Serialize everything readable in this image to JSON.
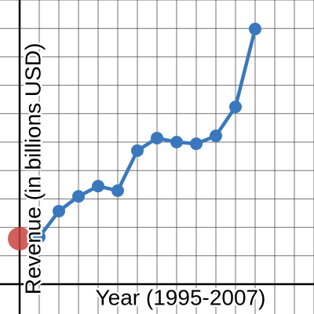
{
  "chart_data": {
    "type": "scatter-line",
    "x_label": "Year (1995-2007)",
    "y_label": "Revenue (in billions USD)",
    "xlim": [
      -1,
      15
    ],
    "ylim": [
      -1.05,
      10
    ],
    "xticks": [
      0,
      1,
      2,
      3,
      4,
      5,
      6,
      7,
      8,
      9,
      10,
      11,
      12,
      13,
      14,
      15
    ],
    "yticks": [
      0,
      1,
      2,
      3,
      4,
      5,
      6,
      7,
      8,
      9,
      10
    ],
    "grid": true,
    "series": [
      {
        "color": "#c74440",
        "mode": "points",
        "x": [
          0
        ],
        "values": [
          1.6
        ]
      },
      {
        "color": "#3a78bd",
        "mode": "lines+points",
        "x": [
          1,
          2,
          3,
          4,
          5,
          6,
          7,
          8,
          9,
          10,
          11,
          12
        ],
        "values": [
          1.66,
          2.57,
          3.09,
          3.45,
          3.29,
          4.7,
          5.14,
          5.0,
          4.94,
          5.22,
          6.24,
          8.98
        ]
      }
    ]
  }
}
